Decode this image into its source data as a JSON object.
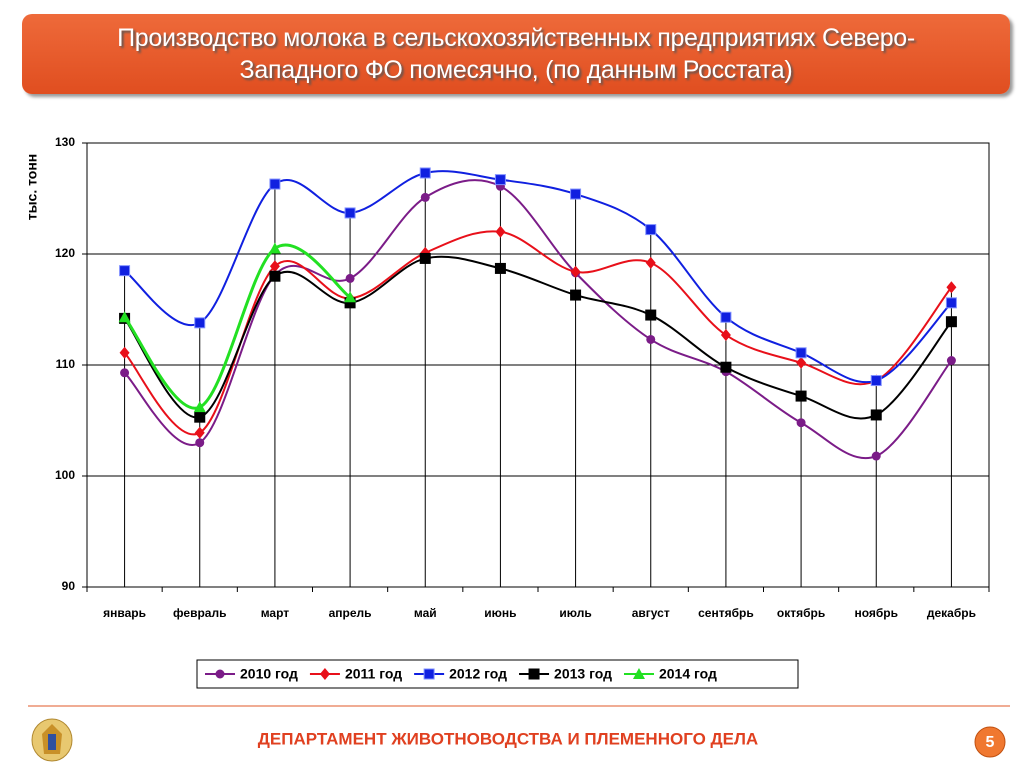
{
  "title": "Производство молока в сельскохозяйственных предприятиях Северо-Западного ФО помесячно, (по данным Росстата)",
  "chart_data": {
    "type": "line",
    "ylabel": "тыс. тонн",
    "categories": [
      "январь",
      "февраль",
      "март",
      "апрель",
      "май",
      "июнь",
      "июль",
      "август",
      "сентябрь",
      "октябрь",
      "ноябрь",
      "декабрь"
    ],
    "series": [
      {
        "name": "2010 год",
        "color": "#7b1c88",
        "marker": "circle",
        "values": [
          109.3,
          103.0,
          118.1,
          117.8,
          125.1,
          126.1,
          118.3,
          112.3,
          109.4,
          104.8,
          101.8,
          110.4
        ]
      },
      {
        "name": "2011 год",
        "color": "#e8101a",
        "marker": "diamond",
        "values": [
          111.1,
          103.9,
          118.9,
          116.0,
          120.1,
          122.0,
          118.4,
          119.2,
          112.7,
          110.2,
          108.6,
          117.0
        ]
      },
      {
        "name": "2012 год",
        "color": "#1020e0",
        "marker": "square",
        "values": [
          118.5,
          113.8,
          126.3,
          123.7,
          127.3,
          126.7,
          125.4,
          122.2,
          114.3,
          111.1,
          108.6,
          115.6
        ]
      },
      {
        "name": "2013 год",
        "color": "#000000",
        "marker": "square",
        "values": [
          114.2,
          105.3,
          118.0,
          115.6,
          119.6,
          118.7,
          116.3,
          114.5,
          109.8,
          107.2,
          105.5,
          113.9
        ]
      },
      {
        "name": "2014 год",
        "color": "#22e022",
        "marker": "triangle",
        "values": [
          114.3,
          106.2,
          120.5,
          116.1,
          null,
          null,
          null,
          null,
          null,
          null,
          null,
          null
        ]
      }
    ],
    "ylim": [
      90,
      130
    ],
    "yticks": [
      90,
      100,
      110,
      120,
      130
    ],
    "grid": true,
    "drop_lines": true,
    "smooth": true,
    "legend": "bottom"
  },
  "footer": {
    "text": "ДЕПАРТАМЕНТ ЖИВОТНОВОДСТВА И ПЛЕМЕННОГО ДЕЛА",
    "page": 5
  }
}
